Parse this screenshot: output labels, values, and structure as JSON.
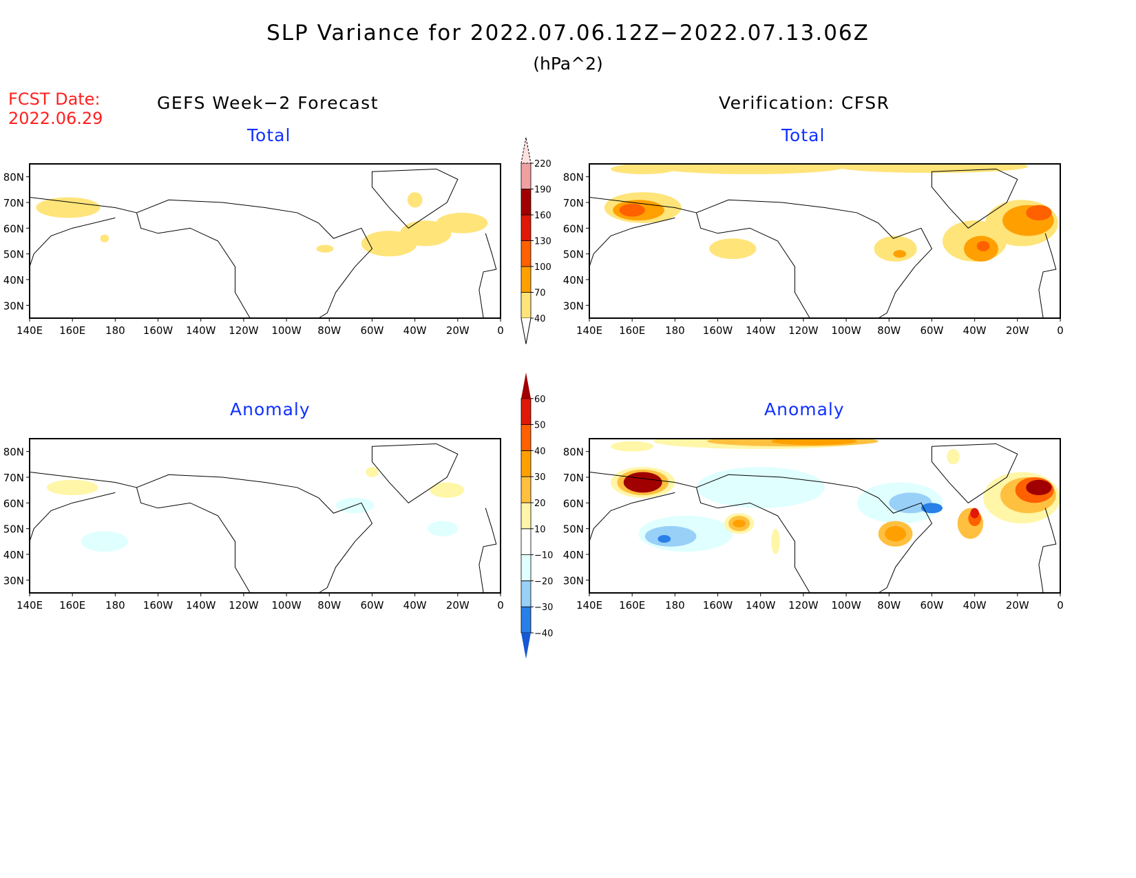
{
  "title": "SLP Variance for 2022.07.06.12Z−2022.07.13.06Z",
  "units": "(hPa^2)",
  "fcst_date_label": "FCST Date:",
  "fcst_date": "2022.06.29",
  "left_header": "GEFS Week−2 Forecast",
  "right_header": "Verification: CFSR",
  "panel_titles": {
    "total": "Total",
    "anomaly": "Anomaly"
  },
  "lat_labels": [
    "80N",
    "70N",
    "60N",
    "50N",
    "40N",
    "30N"
  ],
  "lat_values": [
    80,
    70,
    60,
    50,
    40,
    30
  ],
  "lon_labels": [
    "140E",
    "160E",
    "180",
    "160W",
    "140W",
    "120W",
    "100W",
    "80W",
    "60W",
    "40W",
    "20W",
    "0"
  ],
  "lon_values": [
    140,
    160,
    180,
    200,
    220,
    240,
    260,
    280,
    300,
    320,
    340,
    360
  ],
  "chart_data": [
    {
      "type": "heatmap",
      "name": "total-colorbar",
      "levels": [
        "40",
        "70",
        "100",
        "130",
        "160",
        "190",
        "220"
      ],
      "colors": [
        "#ffe47a",
        "#ffa000",
        "#ff6000",
        "#e01808",
        "#a00000",
        "#f0a0a0",
        "#fde0e0"
      ]
    },
    {
      "type": "heatmap",
      "name": "anomaly-colorbar",
      "levels": [
        "−40",
        "−30",
        "−20",
        "−10",
        "10",
        "20",
        "30",
        "40",
        "50",
        "60"
      ],
      "colors": [
        "#1858d0",
        "#2880e8",
        "#98d0f8",
        "#e0ffff",
        "#ffffff",
        "#fff6a8",
        "#ffc040",
        "#ffa000",
        "#ff6000",
        "#e01808",
        "#a00000"
      ]
    }
  ],
  "panels": {
    "forecast_total": [
      [
        158,
        68,
        15,
        4,
        0
      ],
      [
        320,
        71,
        3.5,
        3,
        0
      ],
      [
        308,
        54,
        13,
        5,
        0
      ],
      [
        325,
        58,
        12,
        5,
        0
      ],
      [
        342,
        62,
        12,
        4,
        0
      ],
      [
        278,
        52,
        4,
        1.5,
        0
      ],
      [
        175,
        56,
        2,
        1.5,
        0
      ]
    ],
    "cfsr_total": [
      [
        215,
        84,
        45,
        3,
        0
      ],
      [
        300,
        84,
        45,
        2.5,
        0
      ],
      [
        165,
        83,
        15,
        2,
        0
      ],
      [
        165,
        68,
        18,
        6,
        0
      ],
      [
        163,
        67,
        12,
        4,
        1
      ],
      [
        160,
        67,
        6,
        2.5,
        2
      ],
      [
        207,
        52,
        11,
        4,
        0
      ],
      [
        283,
        52,
        10,
        5,
        0
      ],
      [
        285,
        50,
        3,
        1.5,
        1
      ],
      [
        320,
        55,
        15,
        8,
        0
      ],
      [
        323,
        52,
        8,
        5,
        1
      ],
      [
        324,
        53,
        3,
        2,
        2
      ],
      [
        342,
        62,
        17,
        9,
        0
      ],
      [
        345,
        63,
        12,
        6,
        1
      ],
      [
        350,
        66,
        6,
        3,
        2
      ]
    ],
    "forecast_anomaly": [
      [
        160,
        66,
        12,
        3,
        5
      ],
      [
        175,
        45,
        11,
        4,
        3
      ],
      [
        292,
        59,
        9,
        3,
        3
      ],
      [
        333,
        50,
        7,
        3,
        3
      ],
      [
        335,
        65,
        8,
        3,
        5
      ],
      [
        300,
        72,
        3,
        2,
        5
      ]
    ],
    "cfsr_anomaly": [
      [
        220,
        84,
        50,
        3,
        5
      ],
      [
        235,
        84,
        40,
        2,
        6
      ],
      [
        245,
        84,
        20,
        1.5,
        7
      ],
      [
        160,
        82,
        10,
        2,
        5
      ],
      [
        220,
        66,
        30,
        8,
        3
      ],
      [
        285,
        60,
        20,
        8,
        3
      ],
      [
        290,
        60,
        10,
        4,
        2
      ],
      [
        300,
        58,
        5,
        2,
        1
      ],
      [
        185,
        48,
        22,
        7,
        3
      ],
      [
        178,
        47,
        12,
        4,
        2
      ],
      [
        175,
        46,
        3,
        1.5,
        1
      ],
      [
        210,
        52,
        7,
        4,
        5
      ],
      [
        210,
        52,
        5,
        3,
        6
      ],
      [
        210,
        52,
        3,
        1.5,
        7
      ],
      [
        283,
        48,
        8,
        5,
        6
      ],
      [
        283,
        48,
        5,
        3,
        7
      ],
      [
        165,
        68,
        15,
        6,
        5
      ],
      [
        165,
        68,
        12,
        5,
        6
      ],
      [
        165,
        68,
        9,
        4,
        10
      ],
      [
        342,
        62,
        18,
        10,
        5
      ],
      [
        345,
        63,
        13,
        7,
        6
      ],
      [
        348,
        65,
        9,
        5,
        8
      ],
      [
        350,
        66,
        6,
        3,
        10
      ],
      [
        318,
        52,
        6,
        6,
        6
      ],
      [
        320,
        54,
        3,
        3,
        8
      ],
      [
        320,
        56,
        2,
        2,
        9
      ],
      [
        227,
        45,
        2,
        5,
        5
      ],
      [
        310,
        78,
        3,
        3,
        5
      ]
    ]
  }
}
